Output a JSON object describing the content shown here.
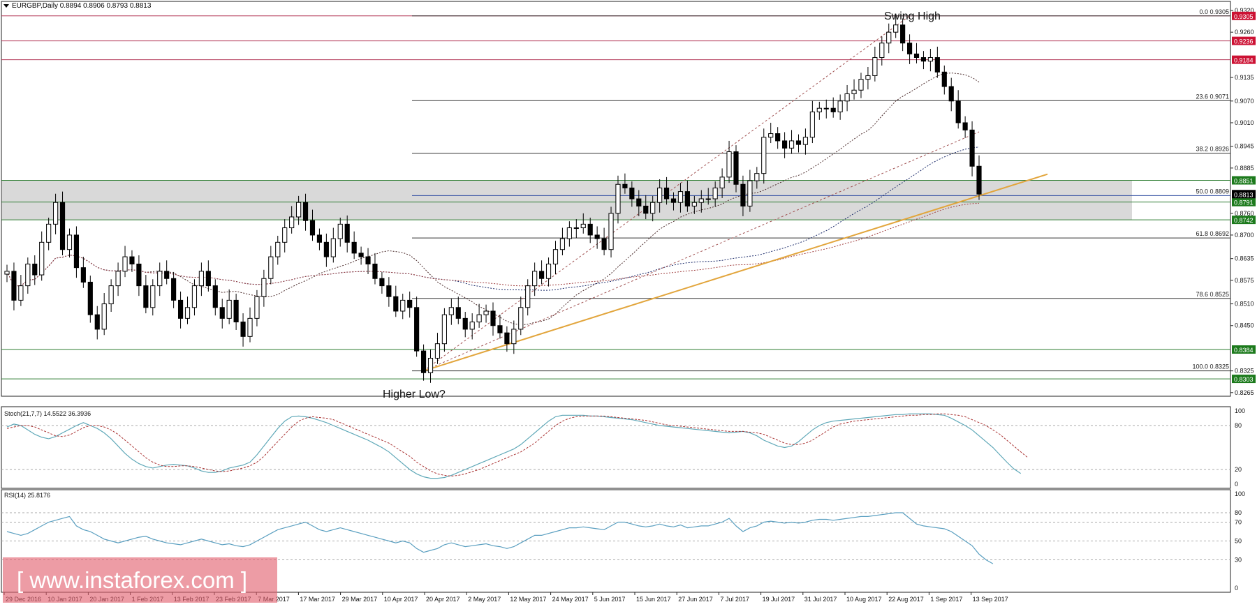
{
  "header": {
    "symbol_line": "EURGBP,Daily  0.8894 0.8906 0.8793 0.8813"
  },
  "annotations": {
    "swing_high": "Swing High",
    "higher_low": "Higher Low?"
  },
  "watermark": {
    "text": "[ www.instaforex.com ]"
  },
  "colors": {
    "bull_candle": "#ffffff",
    "bear_candle": "#000000",
    "trendline": "#e2a53c",
    "resistance_line": "#b03050",
    "support_line": "#2e7d32",
    "fib_line": "#333333",
    "fib_50_line": "#2f4da0",
    "zone_fill": "#d9d9d9",
    "stoch_main": "#5fa8b8",
    "stoch_signal": "#a33",
    "rsi_line": "#5a9fc0",
    "red_label": "#cc1133",
    "green_label": "#1c7a1c",
    "black_label": "#000000"
  },
  "chart_data": [
    {
      "type": "candlestick",
      "title": "EURGBP,Daily",
      "ylim": [
        0.8255,
        0.932
      ],
      "dates": [
        "29 Dec 2016",
        "10 Jan 2017",
        "20 Jan 2017",
        "1 Feb 2017",
        "13 Feb 2017",
        "23 Feb 2017",
        "7 Mar 2017",
        "17 Mar 2017",
        "29 Mar 2017",
        "10 Apr 2017",
        "20 Apr 2017",
        "2 May 2017",
        "12 May 2017",
        "24 May 2017",
        "5 Jun 2017",
        "15 Jun 2017",
        "27 Jun 2017",
        "7 Jul 2017",
        "19 Jul 2017",
        "31 Jul 2017",
        "10 Aug 2017",
        "22 Aug 2017",
        "1 Sep 2017",
        "13 Sep 2017"
      ],
      "price_ticks": [
        "0.9320",
        "0.9260",
        "0.9135",
        "0.9070",
        "0.9010",
        "0.8945",
        "0.8885",
        "0.8760",
        "0.8700",
        "0.8635",
        "0.8575",
        "0.8510",
        "0.8450",
        "0.8325",
        "0.8265"
      ],
      "closes": [
        0.86,
        0.852,
        0.856,
        0.862,
        0.859,
        0.868,
        0.873,
        0.879,
        0.866,
        0.87,
        0.861,
        0.857,
        0.848,
        0.844,
        0.851,
        0.856,
        0.86,
        0.864,
        0.862,
        0.856,
        0.85,
        0.856,
        0.86,
        0.858,
        0.852,
        0.847,
        0.85,
        0.856,
        0.86,
        0.856,
        0.85,
        0.847,
        0.852,
        0.846,
        0.842,
        0.847,
        0.853,
        0.858,
        0.864,
        0.868,
        0.872,
        0.875,
        0.879,
        0.874,
        0.87,
        0.868,
        0.864,
        0.869,
        0.873,
        0.868,
        0.865,
        0.864,
        0.862,
        0.858,
        0.856,
        0.853,
        0.849,
        0.852,
        0.85,
        0.838,
        0.832,
        0.836,
        0.84,
        0.848,
        0.85,
        0.847,
        0.844,
        0.846,
        0.848,
        0.849,
        0.845,
        0.843,
        0.84,
        0.844,
        0.85,
        0.856,
        0.86,
        0.858,
        0.862,
        0.866,
        0.869,
        0.872,
        0.872,
        0.873,
        0.87,
        0.869,
        0.866,
        0.876,
        0.884,
        0.883,
        0.88,
        0.878,
        0.876,
        0.879,
        0.883,
        0.88,
        0.879,
        0.882,
        0.878,
        0.879,
        0.88,
        0.88,
        0.883,
        0.886,
        0.893,
        0.884,
        0.878,
        0.885,
        0.887,
        0.897,
        0.898,
        0.896,
        0.894,
        0.896,
        0.895,
        0.897,
        0.904,
        0.905,
        0.905,
        0.904,
        0.907,
        0.909,
        0.91,
        0.913,
        0.914,
        0.919,
        0.923,
        0.926,
        0.928,
        0.923,
        0.92,
        0.919,
        0.918,
        0.919,
        0.915,
        0.911,
        0.907,
        0.901,
        0.899,
        0.889,
        0.8813
      ],
      "stochastic": {
        "label": "Stoch(21,7,7) 14.5522 36.3936",
        "ylim": [
          0,
          100
        ],
        "levels": [
          80,
          20
        ],
        "ticks": [
          "100",
          "80",
          "20",
          "0"
        ],
        "main": [
          78,
          82,
          80,
          74,
          68,
          64,
          62,
          65,
          70,
          75,
          80,
          84,
          80,
          76,
          70,
          62,
          52,
          42,
          34,
          28,
          24,
          22,
          24,
          26,
          27,
          26,
          25,
          22,
          18,
          16,
          16,
          18,
          22,
          24,
          26,
          30,
          40,
          52,
          64,
          76,
          86,
          92,
          93,
          92,
          90,
          87,
          84,
          80,
          76,
          72,
          68,
          64,
          60,
          55,
          50,
          44,
          36,
          28,
          20,
          14,
          10,
          8,
          8,
          9,
          12,
          16,
          20,
          24,
          28,
          32,
          36,
          40,
          44,
          48,
          54,
          62,
          70,
          78,
          86,
          92,
          94,
          94,
          94,
          94,
          93,
          93,
          92,
          91,
          90,
          89,
          88,
          86,
          84,
          82,
          80,
          79,
          78,
          77,
          76,
          75,
          74,
          73,
          72,
          71,
          70,
          71,
          72,
          70,
          66,
          60,
          56,
          52,
          50,
          52,
          58,
          66,
          74,
          80,
          84,
          86,
          87,
          88,
          89,
          90,
          91,
          92,
          93,
          94,
          95,
          95,
          96,
          96,
          96,
          96,
          95,
          94,
          90,
          85,
          80,
          74,
          66,
          58,
          50,
          40,
          30,
          21,
          14.5522
        ],
        "signal": [
          76,
          78,
          80,
          80,
          78,
          74,
          70,
          66,
          65,
          67,
          72,
          77,
          80,
          80,
          78,
          74,
          68,
          60,
          52,
          44,
          36,
          30,
          26,
          24,
          24,
          25,
          25,
          24,
          22,
          20,
          18,
          17,
          18,
          20,
          22,
          25,
          30,
          38,
          48,
          58,
          68,
          78,
          86,
          90,
          92,
          91,
          90,
          88,
          84,
          80,
          76,
          72,
          68,
          64,
          60,
          56,
          50,
          44,
          38,
          30,
          24,
          18,
          14,
          12,
          11,
          12,
          14,
          17,
          20,
          24,
          28,
          32,
          36,
          40,
          44,
          50,
          56,
          64,
          72,
          80,
          86,
          90,
          92,
          93,
          93,
          93,
          93,
          92,
          91,
          90,
          89,
          88,
          87,
          85,
          83,
          81,
          80,
          79,
          78,
          77,
          76,
          75,
          74,
          73,
          72,
          72,
          72,
          71,
          70,
          68,
          64,
          60,
          56,
          54,
          54,
          56,
          60,
          66,
          72,
          78,
          82,
          84,
          86,
          87,
          88,
          89,
          90,
          91,
          92,
          93,
          94,
          94,
          95,
          95,
          96,
          96,
          95,
          94,
          92,
          88,
          84,
          80,
          74,
          68,
          60,
          52,
          44,
          36.3936
        ]
      },
      "rsi": {
        "label": "RSI(14) 25.8176",
        "ylim": [
          0,
          100
        ],
        "levels": [
          80,
          70,
          50,
          30
        ],
        "ticks": [
          "100",
          "80",
          "70",
          "50",
          "30",
          "0"
        ],
        "values": [
          60,
          58,
          56,
          58,
          62,
          66,
          70,
          72,
          74,
          76,
          66,
          62,
          60,
          56,
          52,
          50,
          48,
          50,
          52,
          54,
          55,
          52,
          50,
          48,
          47,
          46,
          48,
          50,
          52,
          50,
          48,
          46,
          47,
          45,
          44,
          46,
          50,
          54,
          58,
          62,
          64,
          66,
          68,
          70,
          66,
          62,
          60,
          62,
          64,
          62,
          60,
          58,
          56,
          54,
          52,
          50,
          48,
          50,
          48,
          42,
          38,
          40,
          42,
          46,
          48,
          46,
          44,
          45,
          46,
          47,
          45,
          44,
          42,
          44,
          48,
          52,
          56,
          56,
          58,
          60,
          62,
          64,
          64,
          65,
          64,
          63,
          62,
          66,
          70,
          70,
          68,
          66,
          65,
          66,
          68,
          66,
          65,
          67,
          64,
          65,
          66,
          66,
          68,
          70,
          74,
          66,
          60,
          64,
          66,
          70,
          71,
          70,
          69,
          70,
          69,
          70,
          72,
          73,
          73,
          72,
          73,
          74,
          75,
          76,
          76,
          77,
          78,
          79,
          80,
          80,
          74,
          68,
          66,
          65,
          64,
          63,
          60,
          55,
          50,
          45,
          36,
          30,
          25.8176
        ]
      }
    }
  ],
  "levels": {
    "zone": {
      "top": 0.8851,
      "bottom": 0.8742
    },
    "horizontal": [
      {
        "value": 0.9305,
        "kind": "resistance",
        "label": "0.9305"
      },
      {
        "value": 0.9236,
        "kind": "resistance",
        "label": "0.9236"
      },
      {
        "value": 0.9184,
        "kind": "resistance",
        "label": "0.9184"
      },
      {
        "value": 0.8851,
        "kind": "support",
        "label": "0.8851"
      },
      {
        "value": 0.8791,
        "kind": "support",
        "label": "0.8791"
      },
      {
        "value": 0.8742,
        "kind": "support",
        "label": "0.8742"
      },
      {
        "value": 0.8384,
        "kind": "support",
        "label": "0.8384"
      },
      {
        "value": 0.8303,
        "kind": "support",
        "label": "0.8303"
      }
    ],
    "current_price": {
      "value": 0.8813,
      "label": "0.8813"
    },
    "fibonacci": [
      {
        "value": 0.9305,
        "label": "0.0 0.9305"
      },
      {
        "value": 0.9071,
        "label": "23.6 0.9071"
      },
      {
        "value": 0.8926,
        "label": "38.2 0.8926"
      },
      {
        "value": 0.8809,
        "label": "50.0 0.8809"
      },
      {
        "value": 0.8692,
        "label": "61.8 0.8692"
      },
      {
        "value": 0.8525,
        "label": "78.6 0.8525"
      },
      {
        "value": 0.8325,
        "label": "100.0 0.8325"
      }
    ]
  }
}
